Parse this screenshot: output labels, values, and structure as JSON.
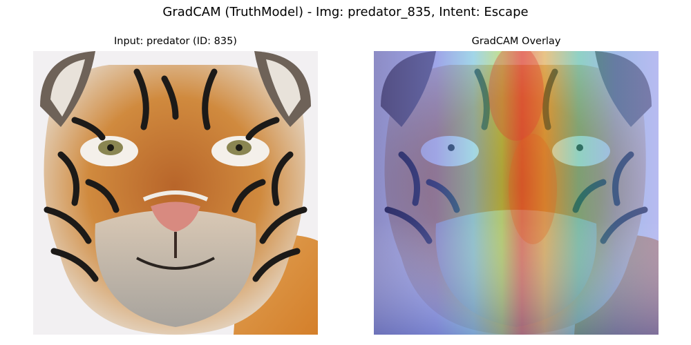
{
  "figure": {
    "suptitle": "GradCAM (TruthModel) - Img: predator_835, Intent: Escape"
  },
  "panels": [
    {
      "title": "Input: predator (ID: 835)",
      "content": "tiger-face-photo"
    },
    {
      "title": "GradCAM Overlay",
      "content": "tiger-face-photo-with-jet-heatmap"
    }
  ],
  "colors": {
    "background": "#ffffff",
    "fur_orange": "#c8742c",
    "fur_light": "#e8d6c0",
    "stripe_dark": "#1c1a18",
    "heat_hot": "#e0402a",
    "heat_mid": "#80d060",
    "heat_cool": "#5a68e0"
  }
}
